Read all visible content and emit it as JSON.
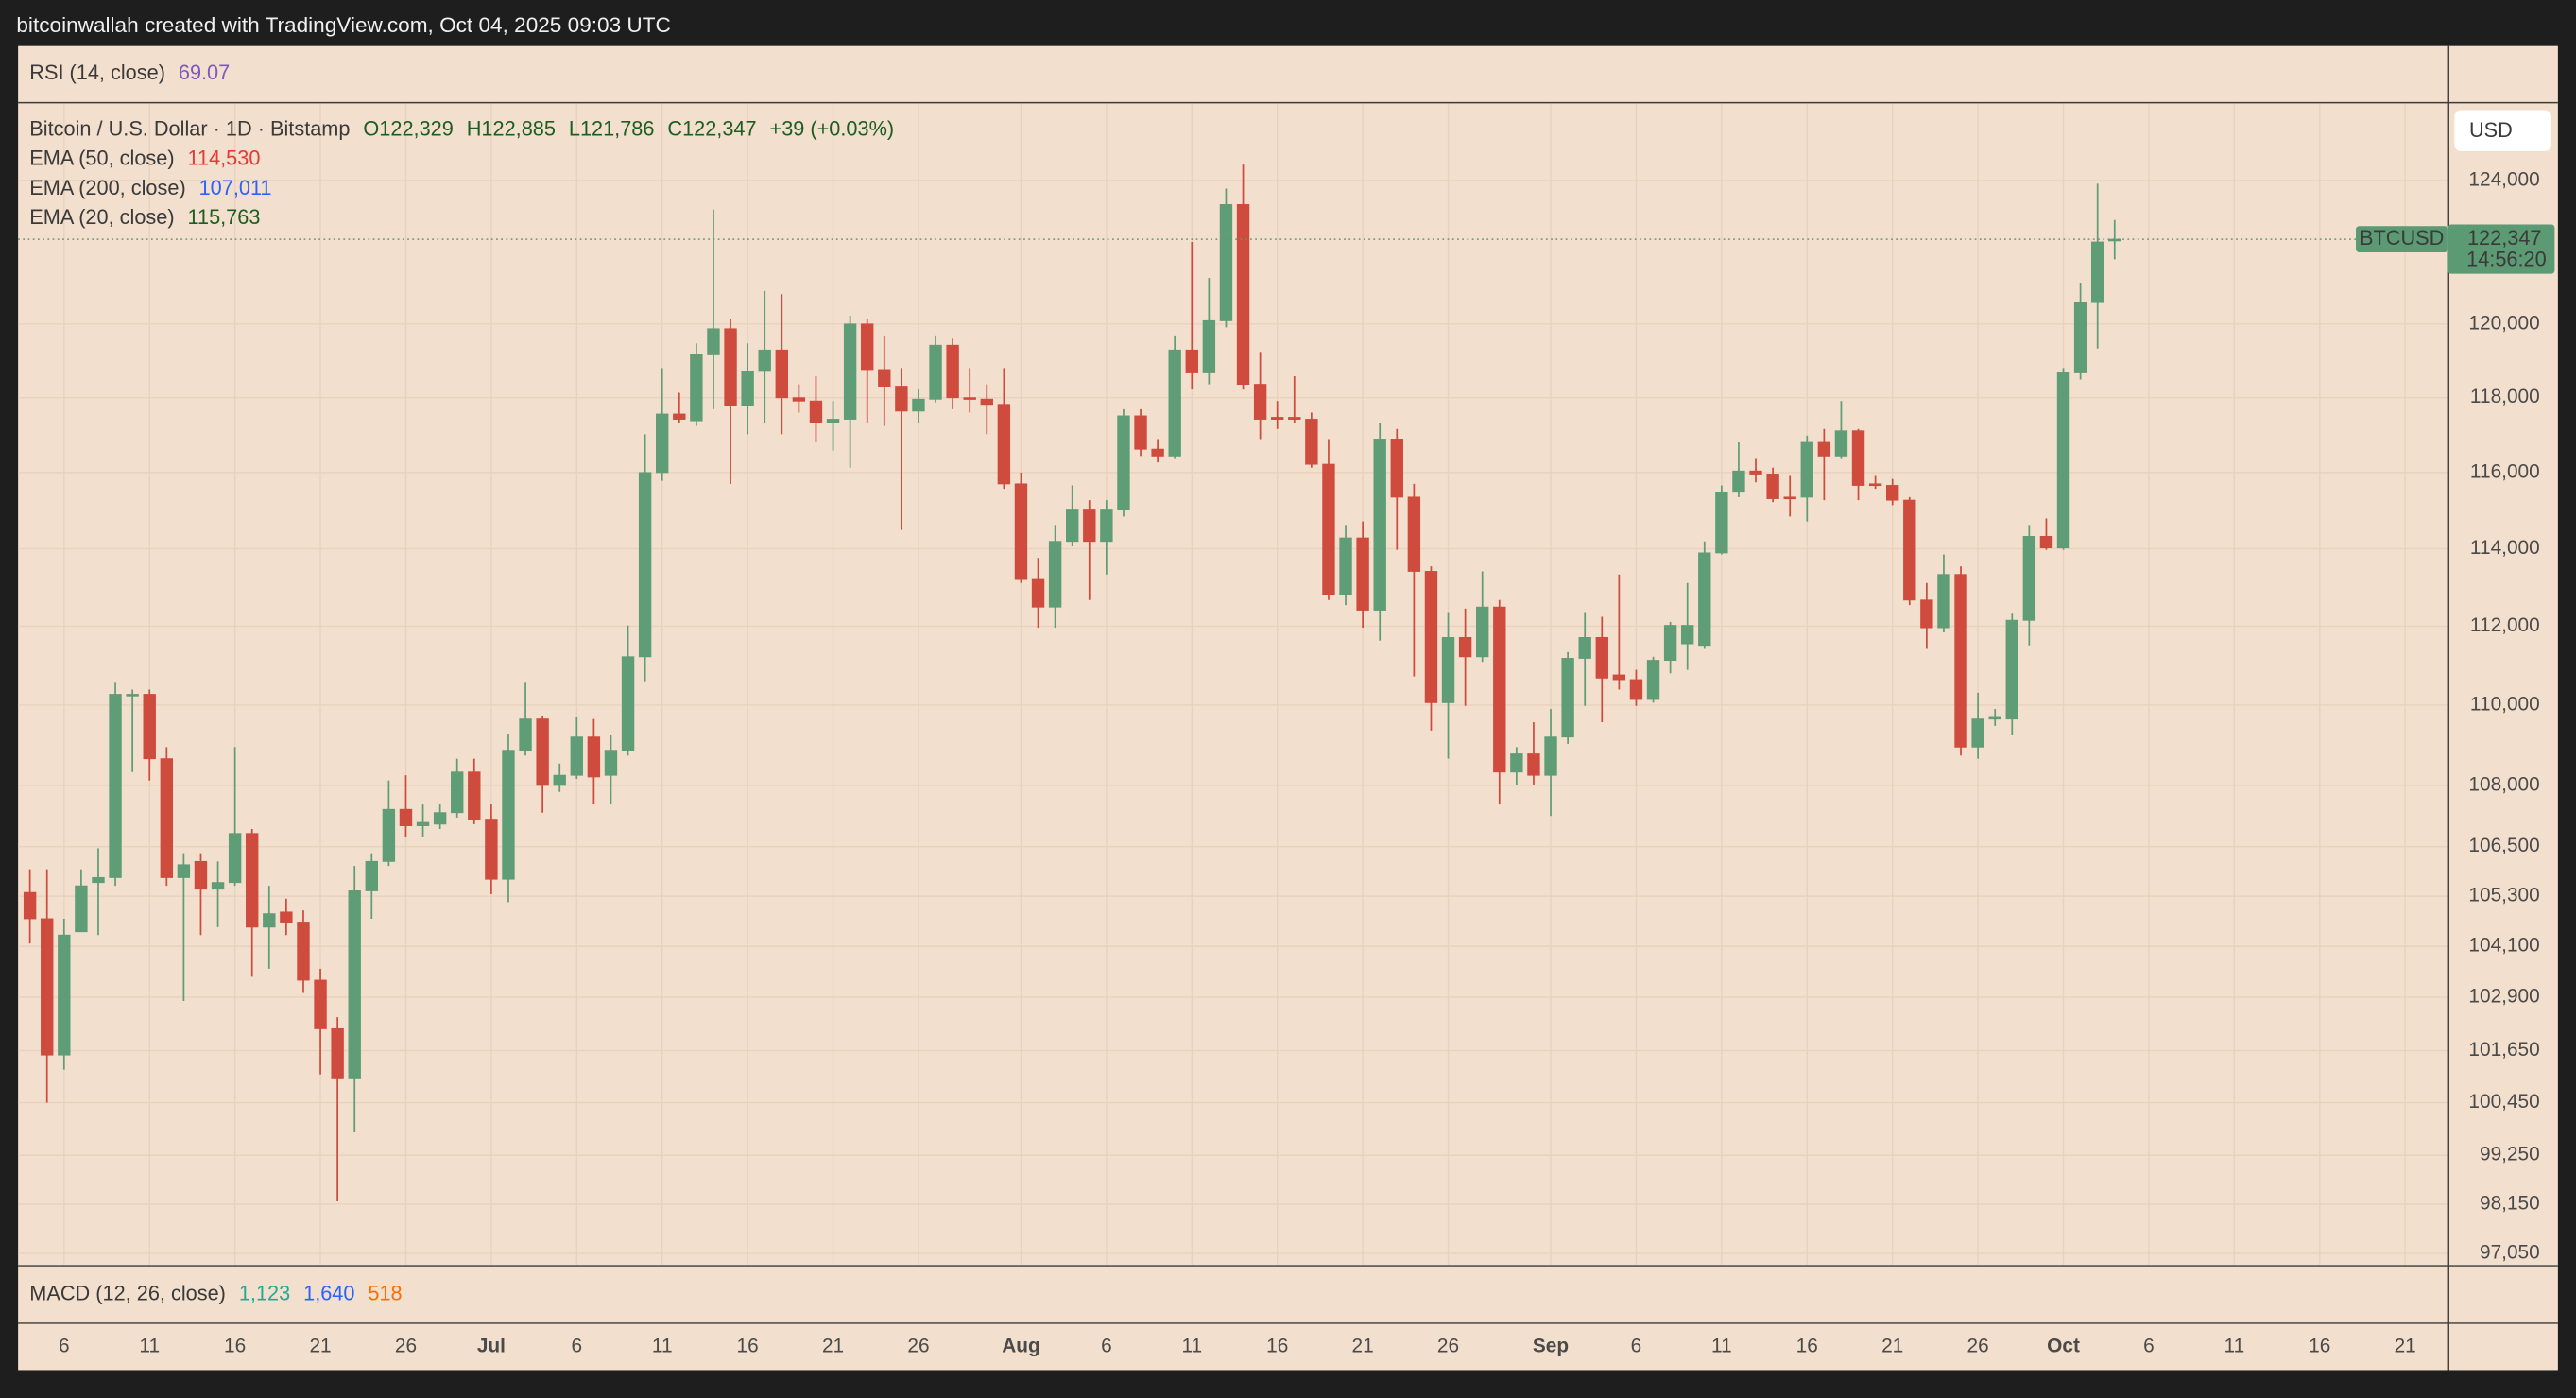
{
  "chart_data": {
    "type": "candlestick",
    "title": "bitcoinwallah created with TradingView.com, Oct 04, 2025 09:03 UTC",
    "symbol_title": "Bitcoin / U.S. Dollar · 1D · Bitstamp",
    "ohlc_labels": [
      "O122,329",
      "H122,885",
      "L121,786",
      "C122,347"
    ],
    "change_label": "+39 (+0.03%)",
    "rsi": {
      "name": "RSI (14, close)",
      "value": 69.07,
      "color": "#7e57c2"
    },
    "emas": [
      {
        "name": "EMA (50, close)",
        "value": {
          "value": 114530,
          "label": "114,530"
        },
        "color": "#e53935"
      },
      {
        "name": "EMA (200, close)",
        "value": {
          "value": 107011,
          "label": "107,011"
        },
        "color": "#2962ff"
      },
      {
        "name": "EMA (20, close)",
        "value": {
          "value": 115763,
          "label": "115,763"
        },
        "color": "#1b5e20"
      }
    ],
    "macd": {
      "name": "MACD (12, 26, close)",
      "values": [
        {
          "value": {
            "value": 1123,
            "label": "1,123"
          },
          "color": "#22ab94"
        },
        {
          "value": {
            "value": 1640,
            "label": "1,640"
          },
          "color": "#2962ff"
        },
        {
          "value": 518,
          "color": "#ff6d00"
        }
      ]
    },
    "currency": "USD",
    "last_price": {
      "symbol": "BTCUSD",
      "label": "122,347",
      "countdown": "14:56:20",
      "color": "#5b9a72"
    },
    "up_color": "#5f9d76",
    "down_color": "#cf4b3d",
    "log_scale": true,
    "grid": true,
    "ylim": [
      96796,
      126200
    ],
    "yticks": [
      {
        "value": 97050,
        "label": "97,050"
      },
      {
        "value": 98150,
        "label": "98,150"
      },
      {
        "value": 99250,
        "label": "99,250"
      },
      {
        "value": 100450,
        "label": "100,450"
      },
      {
        "value": 101650,
        "label": "101,650"
      },
      {
        "value": 102900,
        "label": "102,900"
      },
      {
        "value": 104100,
        "label": "104,100"
      },
      {
        "value": 105300,
        "label": "105,300"
      },
      {
        "value": 106500,
        "label": "106,500"
      },
      {
        "value": 108000,
        "label": "108,000"
      },
      {
        "value": 110000,
        "label": "110,000"
      },
      {
        "value": 112000,
        "label": "112,000"
      },
      {
        "value": 114000,
        "label": "114,000"
      },
      {
        "value": 116000,
        "label": "116,000"
      },
      {
        "value": 118000,
        "label": "118,000"
      },
      {
        "value": 120000,
        "label": "120,000"
      },
      {
        "value": 124000,
        "label": "124,000"
      }
    ],
    "categories": [
      null,
      null,
      "6",
      null,
      null,
      null,
      null,
      "11",
      null,
      null,
      null,
      null,
      "16",
      null,
      null,
      null,
      null,
      "21",
      null,
      null,
      null,
      null,
      "26",
      null,
      null,
      null,
      null,
      "Jul",
      null,
      null,
      null,
      null,
      "6",
      null,
      null,
      null,
      null,
      "11",
      null,
      null,
      null,
      null,
      "16",
      null,
      null,
      null,
      null,
      "21",
      null,
      null,
      null,
      null,
      "26",
      null,
      null,
      null,
      null,
      null,
      "Aug",
      null,
      null,
      null,
      null,
      "6",
      null,
      null,
      null,
      null,
      "11",
      null,
      null,
      null,
      null,
      "16",
      null,
      null,
      null,
      null,
      "21",
      null,
      null,
      null,
      null,
      "26",
      null,
      null,
      null,
      null,
      null,
      "Sep",
      null,
      null,
      null,
      null,
      "6",
      null,
      null,
      null,
      null,
      "11",
      null,
      null,
      null,
      null,
      "16",
      null,
      null,
      null,
      null,
      "21",
      null,
      null,
      null,
      null,
      "26",
      null,
      null,
      null,
      null,
      "Oct",
      null,
      null,
      null,
      null,
      "6",
      null,
      null,
      null,
      null,
      "11",
      null,
      null,
      null,
      null,
      "16",
      null,
      null,
      null,
      null,
      "21",
      null,
      null
    ],
    "open": [
      105390,
      104760,
      101550,
      104450,
      105630,
      105750,
      110230,
      110270,
      108660,
      105750,
      106140,
      105470,
      105630,
      106820,
      104560,
      104920,
      104680,
      103300,
      102160,
      101020,
      105430,
      106140,
      107410,
      107010,
      107050,
      107330,
      108330,
      107170,
      105710,
      108870,
      109650,
      108000,
      108250,
      109200,
      108250,
      108870,
      111220,
      116000,
      117560,
      117380,
      119160,
      119870,
      117780,
      118710,
      119290,
      118000,
      117910,
      117330,
      117420,
      120000,
      118760,
      118310,
      117640,
      117960,
      119420,
      118000,
      117960,
      117820,
      115700,
      113200,
      112490,
      114190,
      115010,
      114190,
      115010,
      117510,
      116620,
      116440,
      119290,
      118670,
      120090,
      123320,
      118360,
      117470,
      117470,
      117420,
      116220,
      112810,
      114280,
      112410,
      116890,
      115350,
      113410,
      110060,
      111710,
      111220,
      112490,
      108330,
      108780,
      108250,
      109200,
      111180,
      111710,
      110760,
      110640,
      110140,
      111130,
      111550,
      111510,
      113890,
      115480,
      116040,
      115960,
      115350,
      115350,
      116800,
      116440,
      117110,
      115700,
      115660,
      115270,
      112670,
      111960,
      113330,
      108950,
      109650,
      109650,
      112150,
      114320,
      114020,
      118670,
      120590,
      122329,
      null,
      null,
      null,
      null,
      null,
      null,
      null,
      null,
      null,
      null,
      null,
      null,
      null,
      null,
      null,
      null,
      null,
      null,
      null
    ],
    "high": [
      105950,
      105950,
      104760,
      105950,
      106460,
      110560,
      110390,
      110390,
      108950,
      106340,
      106340,
      106140,
      108950,
      106930,
      105550,
      105240,
      104960,
      103570,
      102430,
      106030,
      106340,
      108120,
      108250,
      107530,
      107530,
      108660,
      108660,
      107530,
      109280,
      110560,
      109730,
      108540,
      109690,
      109650,
      109240,
      112020,
      117020,
      118800,
      118130,
      119470,
      123180,
      120140,
      119470,
      120910,
      120820,
      118360,
      118580,
      117910,
      120230,
      120140,
      119690,
      118800,
      118220,
      119690,
      119600,
      118800,
      118360,
      118800,
      116000,
      113760,
      114620,
      115660,
      115270,
      115270,
      117690,
      117690,
      116890,
      119690,
      122270,
      121270,
      123770,
      124450,
      119240,
      117910,
      118580,
      117600,
      116890,
      114620,
      114710,
      117330,
      117160,
      115700,
      113540,
      112360,
      112450,
      113410,
      112670,
      108950,
      109570,
      109900,
      111340,
      112360,
      112240,
      113330,
      110890,
      111220,
      112110,
      113110,
      114190,
      115660,
      116800,
      116360,
      116130,
      115910,
      116980,
      117160,
      117910,
      117160,
      115910,
      115830,
      115350,
      113110,
      113850,
      113540,
      110310,
      109900,
      112320,
      114620,
      114790,
      118800,
      121140,
      123910,
      122885,
      null,
      null,
      null,
      null,
      null,
      null,
      null,
      null,
      null,
      null,
      null,
      null,
      null,
      null,
      null,
      null,
      null,
      null,
      null
    ],
    "low": [
      104170,
      100450,
      101210,
      104450,
      104370,
      105550,
      108330,
      108120,
      105550,
      102810,
      104370,
      104560,
      105550,
      103380,
      103570,
      104370,
      103000,
      101100,
      98210,
      99770,
      104760,
      106030,
      106740,
      106740,
      106930,
      107210,
      107050,
      105350,
      105160,
      108740,
      107330,
      107840,
      108160,
      107530,
      107530,
      108740,
      110600,
      115780,
      117330,
      117240,
      117690,
      115700,
      117020,
      117330,
      117020,
      117600,
      116800,
      116580,
      116130,
      117330,
      117240,
      114490,
      117330,
      117870,
      117690,
      117600,
      117020,
      115570,
      113110,
      111960,
      111960,
      114060,
      112670,
      113330,
      114840,
      116440,
      116270,
      116360,
      118220,
      118360,
      119910,
      118220,
      116890,
      117160,
      117330,
      116130,
      112670,
      112540,
      111960,
      111630,
      113970,
      110720,
      109360,
      108660,
      109980,
      111090,
      107530,
      108000,
      108000,
      107250,
      109030,
      109980,
      109570,
      110390,
      109980,
      110060,
      110800,
      110890,
      111420,
      113850,
      115350,
      115740,
      115220,
      114840,
      114710,
      115270,
      116360,
      115270,
      115570,
      115140,
      112540,
      111420,
      111840,
      108740,
      108660,
      109480,
      109240,
      111510,
      113970,
      113970,
      118490,
      119330,
      121786,
      null,
      null,
      null,
      null,
      null,
      null,
      null,
      null,
      null,
      null,
      null,
      null,
      null,
      null,
      null,
      null,
      null,
      null,
      null
    ],
    "close": [
      104760,
      101550,
      104370,
      105550,
      105750,
      110270,
      110270,
      108660,
      105750,
      106060,
      105470,
      105630,
      106820,
      104560,
      104880,
      104680,
      103300,
      102160,
      101020,
      105430,
      106140,
      107410,
      107010,
      107090,
      107330,
      108330,
      107170,
      105710,
      108870,
      109650,
      108000,
      108250,
      109200,
      108210,
      108870,
      111220,
      116000,
      117560,
      117420,
      119160,
      119870,
      117780,
      118710,
      119290,
      118000,
      117910,
      117330,
      117420,
      120000,
      118760,
      118310,
      117640,
      117960,
      119420,
      118000,
      117960,
      117820,
      115700,
      113200,
      112490,
      114190,
      115010,
      114190,
      115010,
      117510,
      116620,
      116440,
      119290,
      118670,
      120090,
      123320,
      118360,
      117420,
      117420,
      117420,
      116220,
      112810,
      114280,
      112410,
      116890,
      115350,
      113410,
      110060,
      111710,
      111220,
      112490,
      108330,
      108780,
      108250,
      109200,
      111180,
      111710,
      110680,
      110640,
      110140,
      111130,
      112020,
      112020,
      113890,
      115480,
      116040,
      115960,
      115310,
      115310,
      116800,
      116440,
      117110,
      115660,
      115660,
      115270,
      112670,
      111960,
      113330,
      108950,
      109650,
      109690,
      112150,
      114320,
      114020,
      118670,
      120590,
      122270,
      122347,
      null,
      null,
      null,
      null,
      null,
      null,
      null,
      null,
      null,
      null,
      null,
      null,
      null,
      null,
      null,
      null,
      null,
      null,
      null
    ]
  }
}
